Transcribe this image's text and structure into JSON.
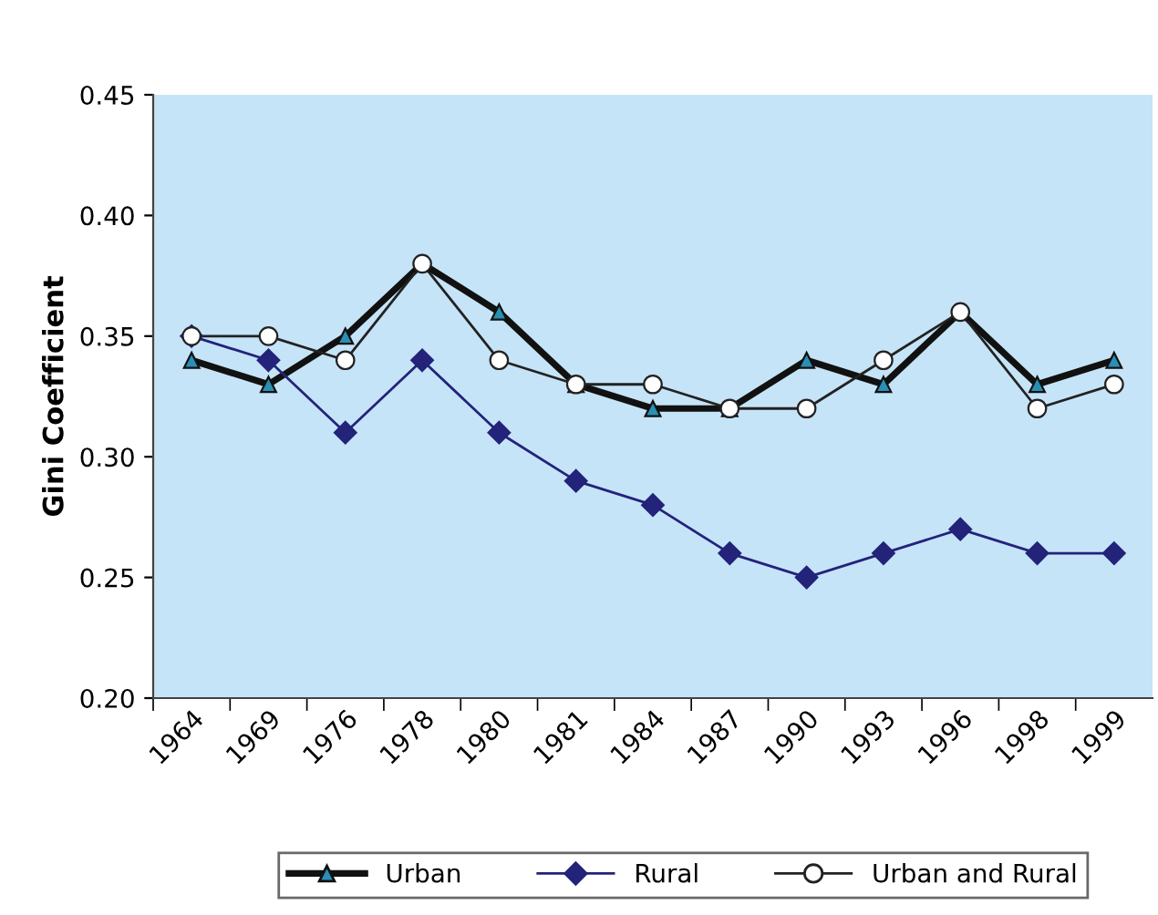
{
  "chart_data": {
    "type": "line",
    "ylabel": "Gini Coefficient",
    "categories": [
      "1964",
      "1969",
      "1976",
      "1978",
      "1980",
      "1981",
      "1984",
      "1987",
      "1990",
      "1993",
      "1996",
      "1998",
      "1999"
    ],
    "series": [
      {
        "name": "Urban",
        "color": "#111111",
        "marker": "triangle",
        "values": [
          0.34,
          0.33,
          0.35,
          0.38,
          0.36,
          0.33,
          0.32,
          0.32,
          0.34,
          0.33,
          0.36,
          0.33,
          0.34
        ]
      },
      {
        "name": "Rural",
        "color": "#23237a",
        "marker": "diamond",
        "values": [
          0.35,
          0.34,
          0.31,
          0.34,
          0.31,
          0.29,
          0.28,
          0.26,
          0.25,
          0.26,
          0.27,
          0.26,
          0.26
        ]
      },
      {
        "name": "Urban and Rural",
        "color": "#222222",
        "marker": "circle",
        "values": [
          0.35,
          0.35,
          0.34,
          0.38,
          0.34,
          0.33,
          0.33,
          0.32,
          0.32,
          0.34,
          0.36,
          0.32,
          0.33
        ]
      }
    ],
    "ylim": [
      0.2,
      0.45
    ],
    "yticks": [
      {
        "value": 0.2,
        "label": "0.20"
      },
      {
        "value": 0.25,
        "label": "0.25"
      },
      {
        "value": 0.3,
        "label": "0.30"
      },
      {
        "value": 0.35,
        "label": "0.35"
      },
      {
        "value": 0.4,
        "label": "0.40"
      },
      {
        "value": 0.45,
        "label": "0.45"
      }
    ],
    "grid": false,
    "legend": "bottom",
    "line_style": "solid"
  }
}
